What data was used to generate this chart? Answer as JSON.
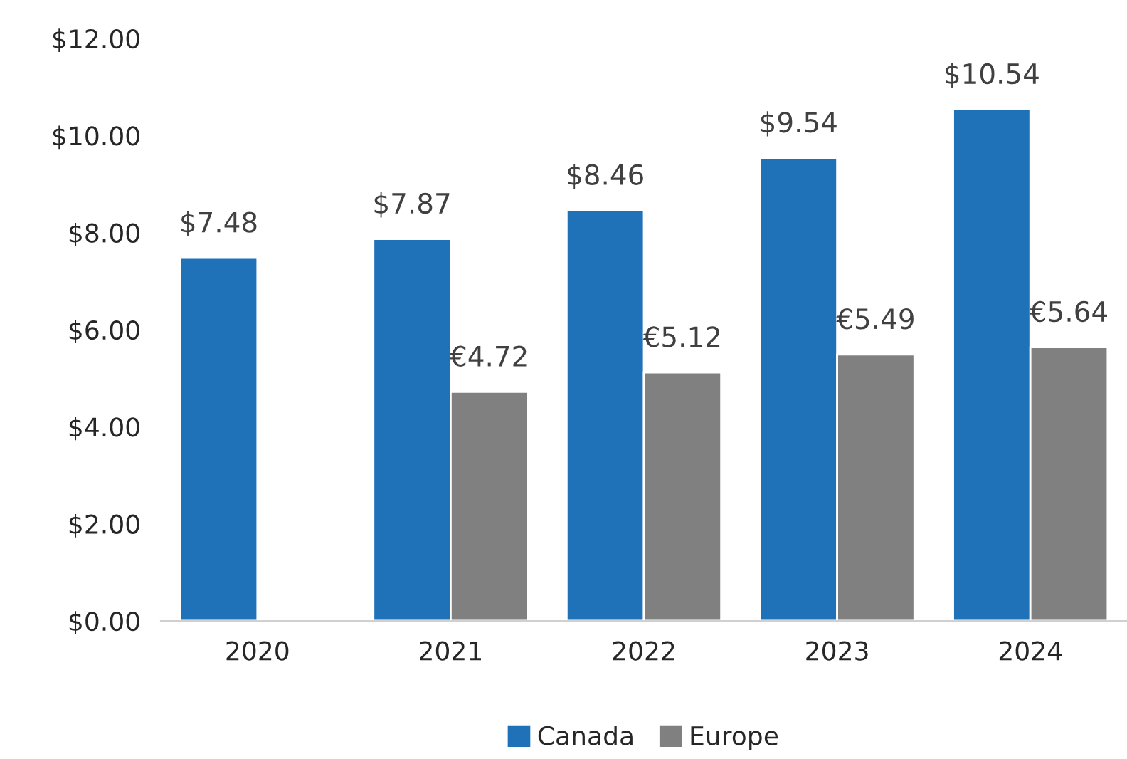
{
  "chart_data": {
    "type": "bar",
    "categories": [
      "2020",
      "2021",
      "2022",
      "2023",
      "2024"
    ],
    "series": [
      {
        "name": "Canada",
        "color": "#1f72b8",
        "values": [
          7.48,
          7.87,
          8.46,
          9.54,
          10.54
        ],
        "value_labels": [
          "$7.48",
          "$7.87",
          "$8.46",
          "$9.54",
          "$10.54"
        ]
      },
      {
        "name": "Europe",
        "color": "#808080",
        "values": [
          null,
          4.72,
          5.12,
          5.49,
          5.64
        ],
        "value_labels": [
          null,
          "€4.72",
          "€5.12",
          "€5.49",
          "€5.64"
        ]
      }
    ],
    "ylim": [
      0,
      12
    ],
    "yticks": [
      {
        "value": 0,
        "label": "$0.00"
      },
      {
        "value": 2,
        "label": "$2.00"
      },
      {
        "value": 4,
        "label": "$4.00"
      },
      {
        "value": 6,
        "label": "$6.00"
      },
      {
        "value": 8,
        "label": "$8.00"
      },
      {
        "value": 10,
        "label": "$10.00"
      },
      {
        "value": 12,
        "label": "$12.00"
      }
    ],
    "grid": false,
    "legend": "bottom"
  }
}
